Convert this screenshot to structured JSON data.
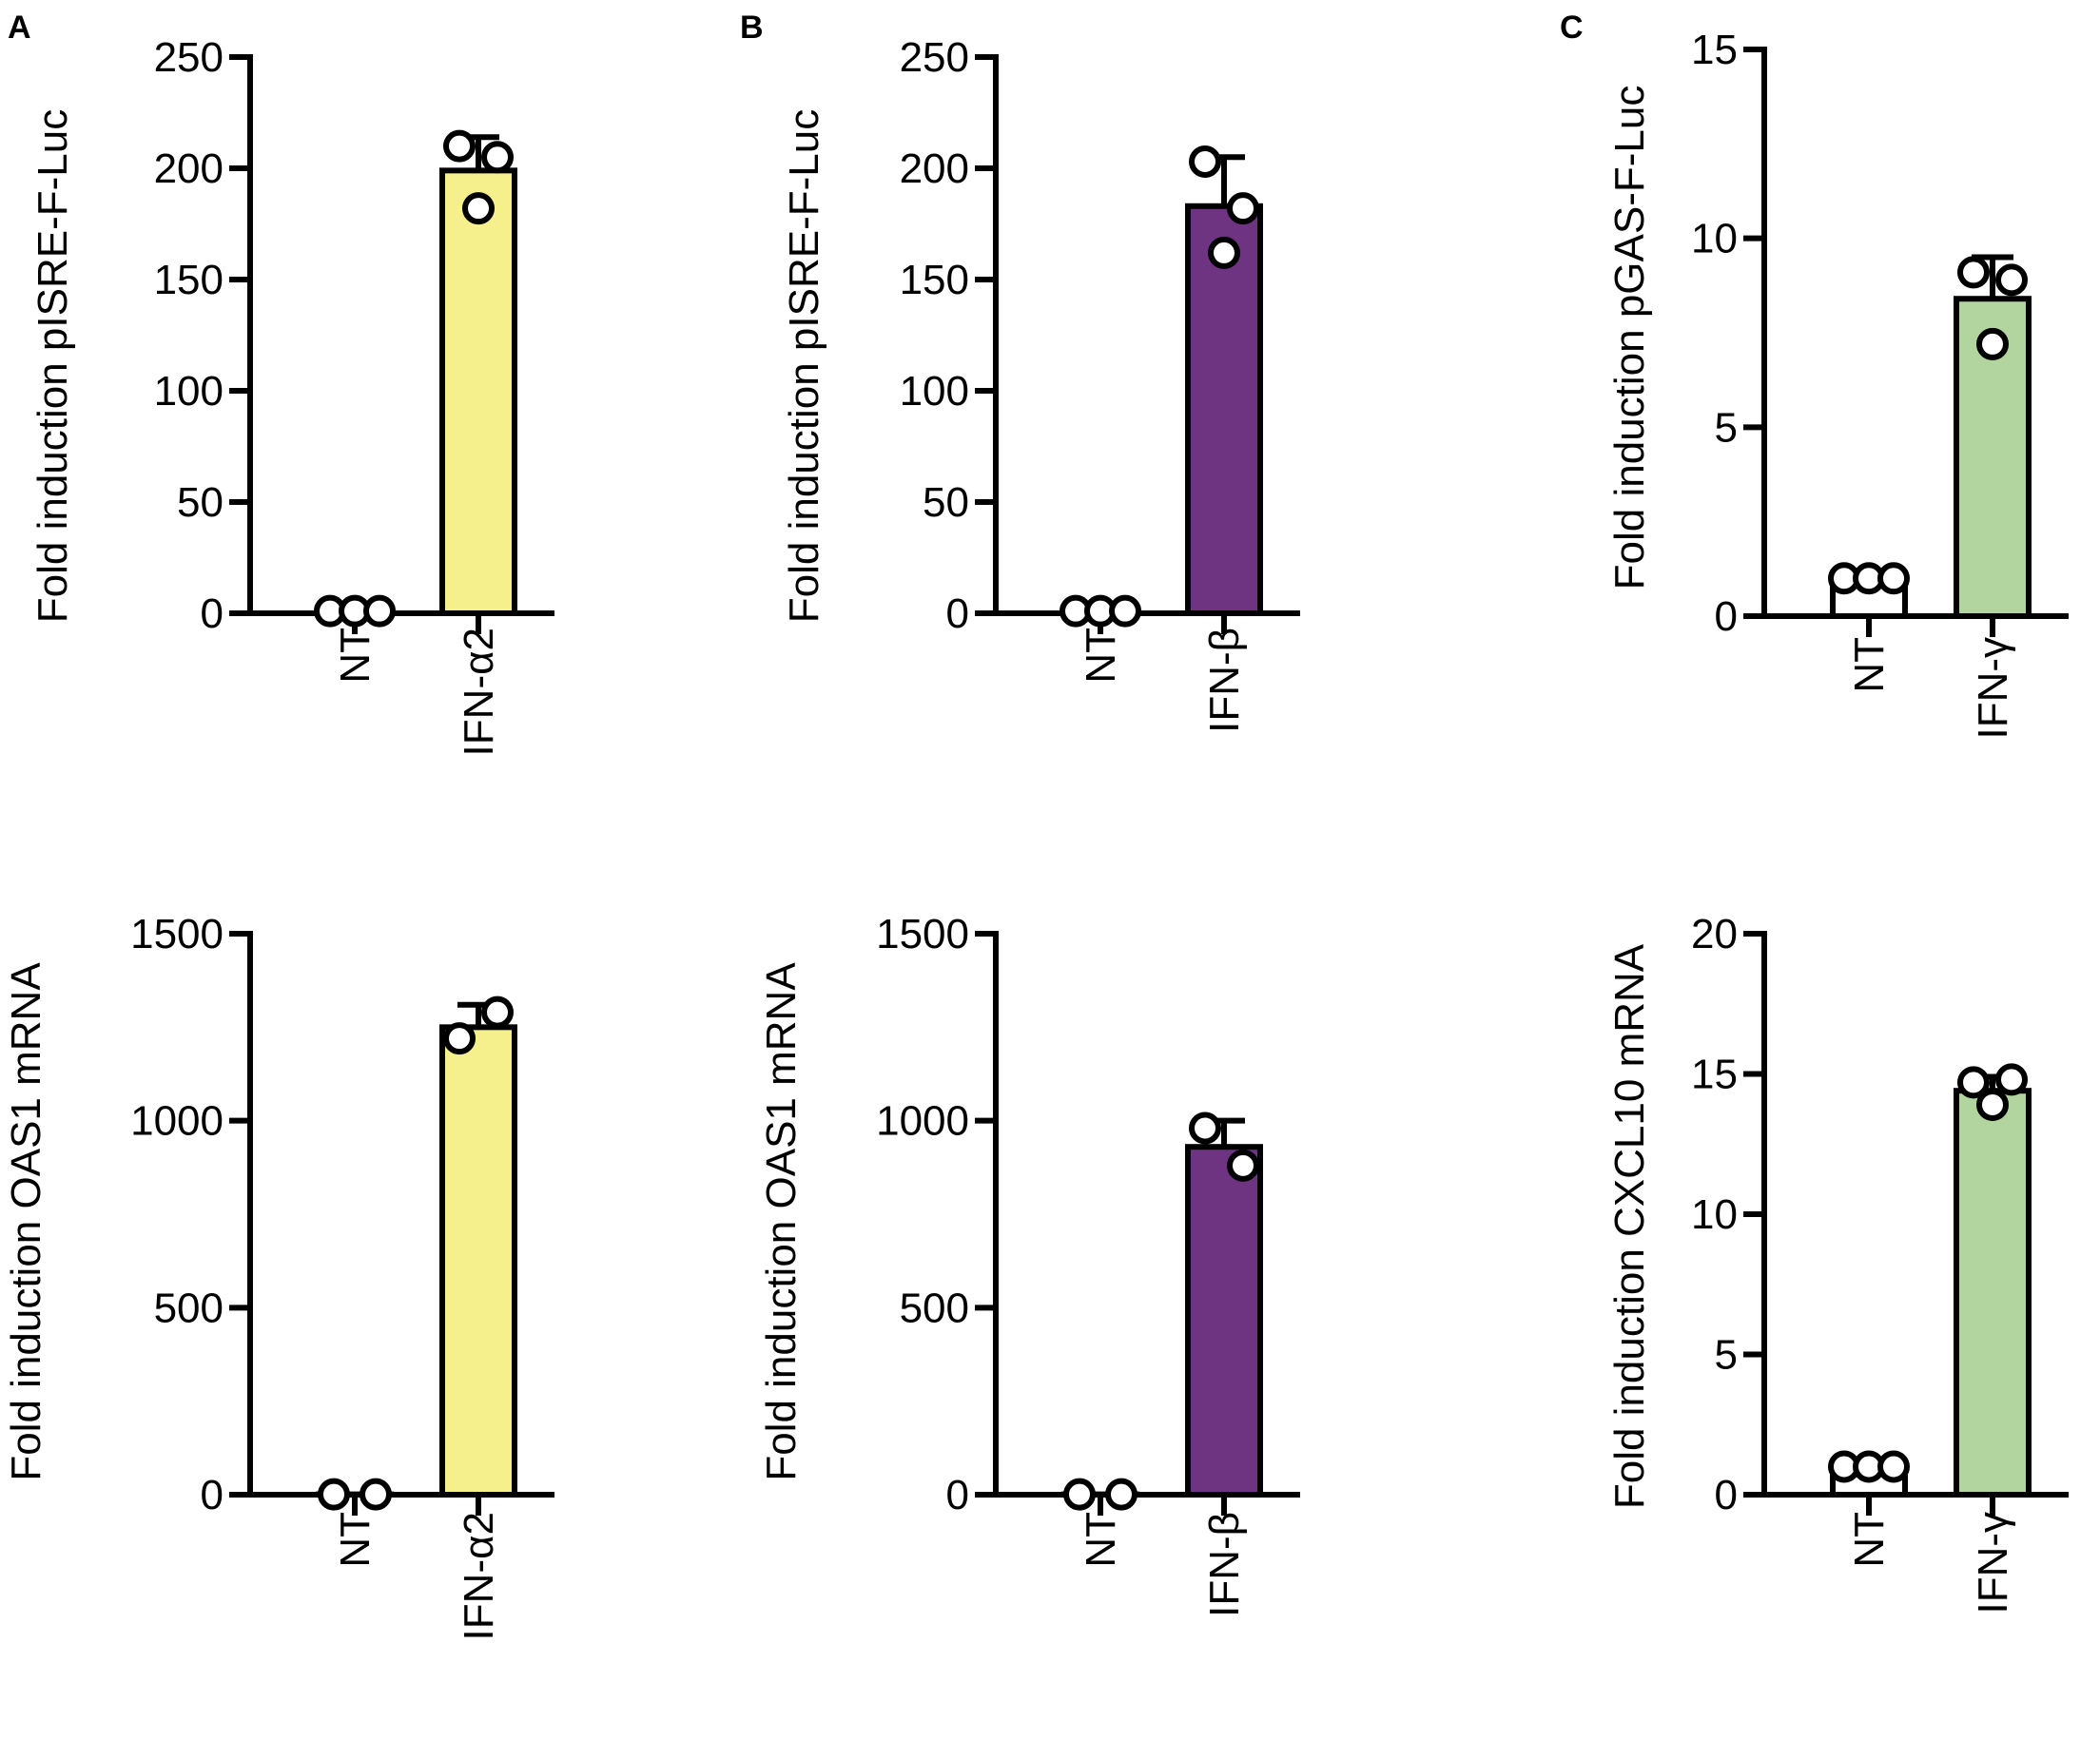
{
  "figure": {
    "panel_letters": [
      "A",
      "B",
      "C"
    ]
  },
  "chart_data": [
    {
      "type": "bar",
      "panel": "A",
      "row": "top",
      "title": "",
      "ylabel": "Fold induction pISRE-F-Luc",
      "ylim": [
        0,
        250
      ],
      "yticks": [
        0,
        50,
        100,
        150,
        200,
        250
      ],
      "categories": [
        "NT",
        "IFN-α2"
      ],
      "values": [
        1,
        199
      ],
      "error": [
        0,
        15
      ],
      "points": [
        [
          1,
          1,
          1
        ],
        [
          210,
          205,
          182
        ]
      ],
      "colors": [
        "#ffffff",
        "#f5f08c"
      ]
    },
    {
      "type": "bar",
      "panel": "B",
      "row": "top",
      "title": "",
      "ylabel": "Fold induction pISRE-F-Luc",
      "ylim": [
        0,
        250
      ],
      "yticks": [
        0,
        50,
        100,
        150,
        200,
        250
      ],
      "categories": [
        "NT",
        "IFN-β"
      ],
      "values": [
        1,
        183
      ],
      "error": [
        0,
        22
      ],
      "points": [
        [
          1,
          1,
          1
        ],
        [
          203,
          182,
          162
        ]
      ],
      "colors": [
        "#ffffff",
        "#6e3482"
      ]
    },
    {
      "type": "bar",
      "panel": "C",
      "row": "top",
      "title": "",
      "ylabel": "Fold induction pGAS-F-Luc",
      "ylim": [
        0,
        15
      ],
      "yticks": [
        0,
        5,
        10,
        15
      ],
      "categories": [
        "NT",
        "IFN-γ"
      ],
      "values": [
        1,
        8.4
      ],
      "error": [
        0,
        1.1
      ],
      "points": [
        [
          1,
          1,
          1
        ],
        [
          9.1,
          8.9,
          7.2
        ]
      ],
      "colors": [
        "#ffffff",
        "#b2d59f"
      ]
    },
    {
      "type": "bar",
      "panel": "A",
      "row": "bottom",
      "title": "",
      "ylabel": "Fold induction OAS1 mRNA",
      "ylim": [
        0,
        1500
      ],
      "yticks": [
        0,
        500,
        1000,
        1500
      ],
      "categories": [
        "NT",
        "IFN-α2"
      ],
      "values": [
        1,
        1250
      ],
      "error": [
        0,
        60
      ],
      "points": [
        [
          1,
          1
        ],
        [
          1220,
          1290
        ]
      ],
      "colors": [
        "#ffffff",
        "#f5f08c"
      ]
    },
    {
      "type": "bar",
      "panel": "B",
      "row": "bottom",
      "title": "",
      "ylabel": "Fold induction OAS1 mRNA",
      "ylim": [
        0,
        1500
      ],
      "yticks": [
        0,
        500,
        1000,
        1500
      ],
      "categories": [
        "NT",
        "IFN-β"
      ],
      "values": [
        1,
        930
      ],
      "error": [
        0,
        70
      ],
      "points": [
        [
          1,
          1
        ],
        [
          980,
          880
        ]
      ],
      "colors": [
        "#ffffff",
        "#6e3482"
      ]
    },
    {
      "type": "bar",
      "panel": "C",
      "row": "bottom",
      "title": "",
      "ylabel": "Fold induction CXCL10 mRNA",
      "ylim": [
        0,
        20
      ],
      "yticks": [
        0,
        5,
        10,
        15,
        20
      ],
      "categories": [
        "NT",
        "IFN-γ"
      ],
      "values": [
        1,
        14.4
      ],
      "error": [
        0,
        0.5
      ],
      "points": [
        [
          1,
          1,
          1
        ],
        [
          14.7,
          14.8,
          13.9
        ]
      ],
      "colors": [
        "#ffffff",
        "#b2d59f"
      ]
    }
  ]
}
